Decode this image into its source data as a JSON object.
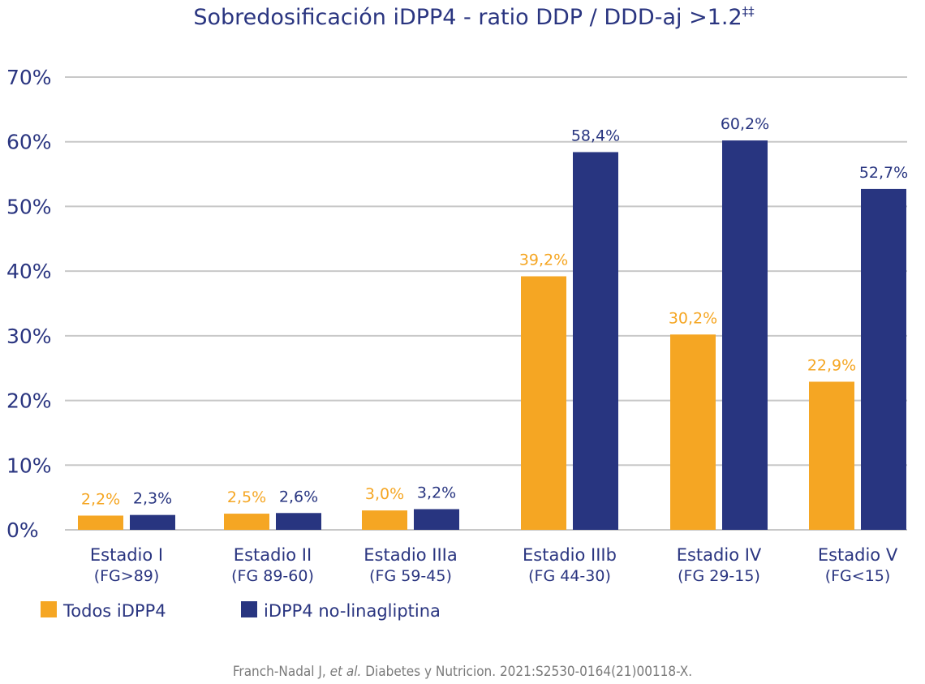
{
  "colors": {
    "series_1": "#f5a623",
    "series_2": "#283580",
    "text": "#2a3580",
    "grid": "#c8c8c8"
  },
  "source": {
    "author": "Franch-Nadal J, ",
    "etal": "et al.",
    "rest": " Diabetes y Nutricion. 2021:S2530-0164(21)00118-X."
  },
  "chart_data": {
    "type": "bar",
    "title": "Sobredosificación iDPP4 - ratio DDP / DDD-aj >1.2",
    "title_superscript": "‡‡",
    "categories": [
      "Estadio I",
      "Estadio II",
      "Estadio IIIa",
      "Estadio IIIb",
      "Estadio IV",
      "Estadio V"
    ],
    "category_sublabels": [
      "(FG>89)",
      "(FG 89-60)",
      "(FG 59-45)",
      "(FG 44-30)",
      "(FG 29-15)",
      "(FG<15)"
    ],
    "series": [
      {
        "name": "Todos iDPP4",
        "color": "#f5a623",
        "values": [
          2.2,
          2.5,
          3.0,
          39.2,
          30.2,
          22.9
        ],
        "labels": [
          "2,2%",
          "2,5%",
          "3,0%",
          "39,2%",
          "30,2%",
          "22,9%"
        ]
      },
      {
        "name": "iDPP4 no-linagliptina",
        "color": "#283580",
        "values": [
          2.3,
          2.6,
          3.2,
          58.4,
          60.2,
          52.7
        ],
        "labels": [
          "2,3%",
          "2,6%",
          "3,2%",
          "58,4%",
          "60,2%",
          "52,7%"
        ]
      }
    ],
    "yticks": [
      "0%",
      "10%",
      "20%",
      "30%",
      "40%",
      "50%",
      "60%",
      "70%"
    ],
    "ylim": [
      0,
      70
    ],
    "grid": true,
    "legend_position": "bottom-left"
  }
}
